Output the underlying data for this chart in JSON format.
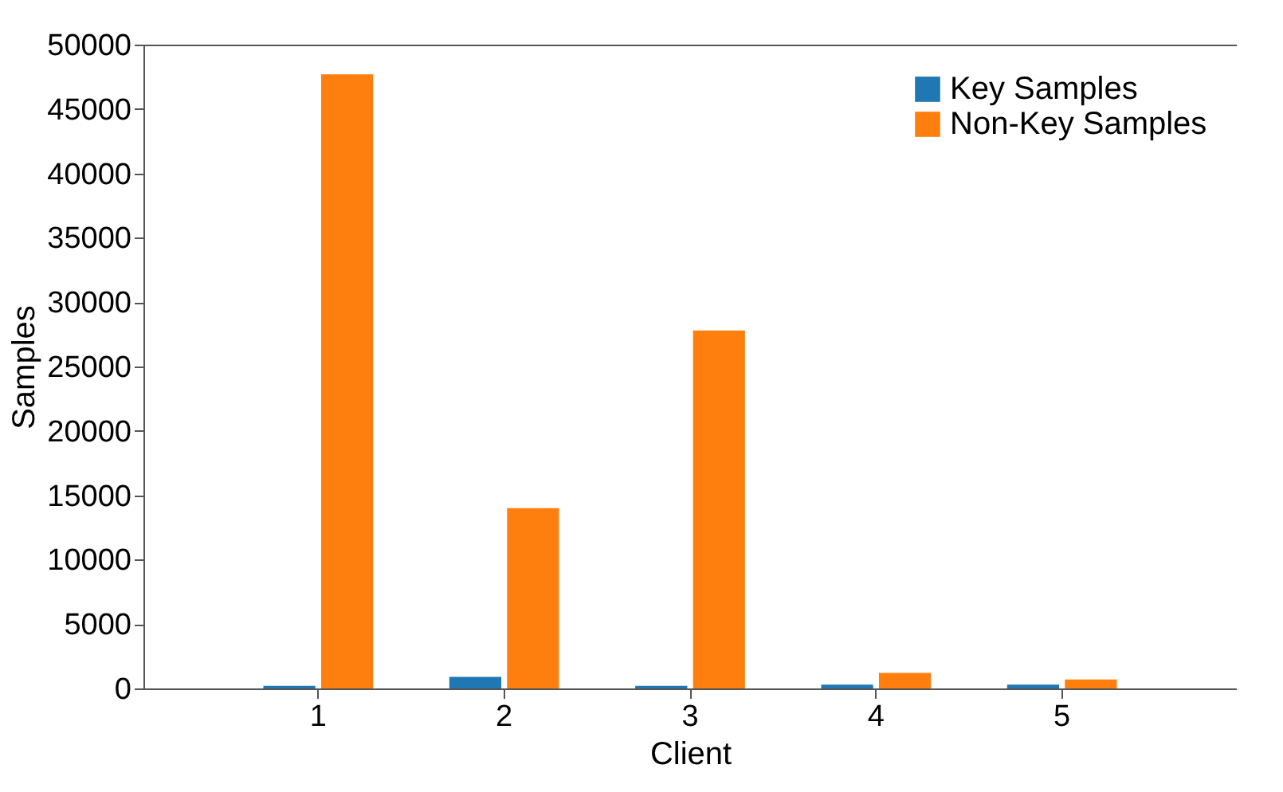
{
  "chart_data": {
    "type": "bar",
    "xlabel": "Client",
    "ylabel": "Samples",
    "categories": [
      "1",
      "2",
      "3",
      "4",
      "5"
    ],
    "series": [
      {
        "name": "Key Samples",
        "color": "#1f77b4",
        "values": [
          200,
          900,
          200,
          300,
          300
        ]
      },
      {
        "name": "Non-Key Samples",
        "color": "#ff7f0e",
        "values": [
          47700,
          14000,
          27800,
          1200,
          700
        ]
      }
    ],
    "ylim": [
      0,
      50000
    ],
    "yticks": [
      0,
      5000,
      10000,
      15000,
      20000,
      25000,
      30000,
      35000,
      40000,
      45000,
      50000
    ],
    "grid": false,
    "legend": "top right"
  }
}
